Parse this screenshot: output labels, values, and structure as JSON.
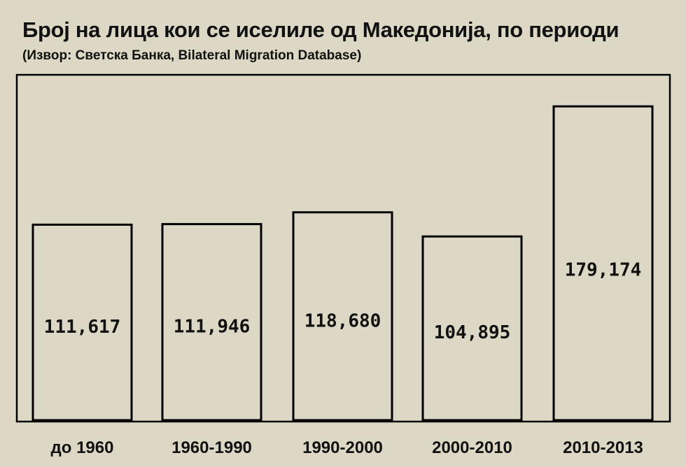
{
  "chart_data": {
    "type": "bar",
    "title": "Број на лица кои се иселиле од Македонија, по периоди",
    "subtitle": "(Извор: Светска Банка, Bilateral Migration Database)",
    "categories": [
      "до 1960",
      "1960-1990",
      "1990-2000",
      "2000-2010",
      "2010-2013"
    ],
    "values": [
      111617,
      111946,
      118680,
      104895,
      179174
    ],
    "value_labels": [
      "111,617",
      "111,946",
      "118,680",
      "104,895",
      "179,174"
    ],
    "ylim": [
      0,
      200000
    ],
    "grid": false,
    "legend": "none",
    "colors": {
      "background": "#ddd8c5",
      "bar_fill": "none",
      "bar_stroke": "#000000",
      "text": "#111111"
    }
  }
}
